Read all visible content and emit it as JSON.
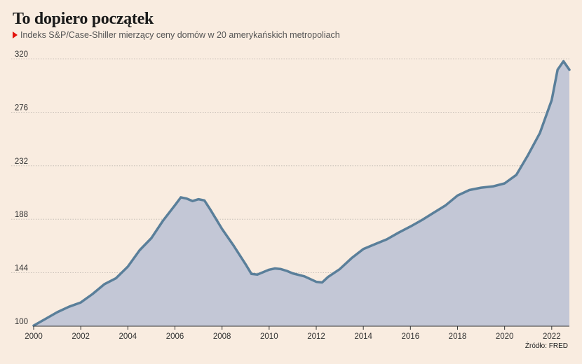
{
  "title": "To dopiero początek",
  "subtitle": "Indeks S&P/Case-Shiller mierzący ceny domów w 20 amerykańskich metropoliach",
  "source": "Źródło: FRED",
  "colors": {
    "background": "#f9ece0",
    "line": "#5a7f9a",
    "area": "#c3c7d6",
    "grid": "#bfb7b0",
    "accent": "#e3120b"
  },
  "chart_data": {
    "type": "area",
    "title": "To dopiero początek",
    "subtitle": "Indeks S&P/Case-Shiller mierzący ceny domów w 20 amerykańskich metropoliach",
    "xlim": [
      2000,
      2022.75
    ],
    "ylim": [
      100,
      320
    ],
    "yticks": [
      100,
      144,
      188,
      232,
      276,
      320
    ],
    "xticks": [
      2000,
      2002,
      2004,
      2006,
      2008,
      2010,
      2012,
      2014,
      2016,
      2018,
      2020,
      2022
    ],
    "grid": "horizontal, dotted",
    "series": [
      {
        "x": [
          2000.0,
          2000.5,
          2001.0,
          2001.5,
          2002.0,
          2002.5,
          2003.0,
          2003.5,
          2004.0,
          2004.5,
          2005.0,
          2005.5,
          2006.0,
          2006.25,
          2006.5,
          2006.75,
          2007.0,
          2007.25,
          2007.5,
          2008.0,
          2008.5,
          2009.0,
          2009.25,
          2009.5,
          2010.0,
          2010.25,
          2010.5,
          2010.75,
          2011.0,
          2011.5,
          2012.0,
          2012.25,
          2012.5,
          2013.0,
          2013.5,
          2014.0,
          2014.5,
          2015.0,
          2015.5,
          2016.0,
          2016.5,
          2017.0,
          2017.5,
          2018.0,
          2018.5,
          2019.0,
          2019.5,
          2020.0,
          2020.5,
          2021.0,
          2021.5,
          2022.0,
          2022.25,
          2022.5,
          2022.75
        ],
        "y": [
          100.5,
          106,
          111.5,
          116,
          119.5,
          126.5,
          134.5,
          139.5,
          149,
          162.5,
          172.5,
          187,
          199.5,
          206,
          205,
          203,
          204.5,
          203.5,
          196,
          180,
          166,
          151,
          143,
          142.5,
          146.5,
          147.5,
          147,
          145.5,
          143.5,
          141,
          136.5,
          136,
          140.5,
          147,
          156,
          163.5,
          167.5,
          171.5,
          177,
          182,
          187.5,
          193.5,
          199.5,
          207.5,
          212,
          214,
          215,
          217.5,
          224.5,
          241,
          259,
          286,
          311,
          318,
          311
        ]
      }
    ],
    "source": "Źródło: FRED"
  }
}
